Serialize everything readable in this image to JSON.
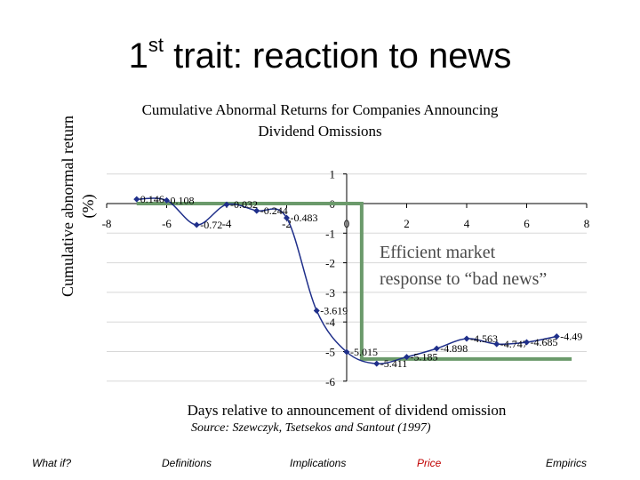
{
  "slide": {
    "title_main": "1",
    "title_sup": "st",
    "title_rest": " trait: reaction to news",
    "source": "Source: Szewczyk, Tsetsekos and Santout (1997)"
  },
  "nav": {
    "what_if": "What if?",
    "definitions": "Definitions",
    "implications": "Implications",
    "price": "Price",
    "empirics": "Empirics"
  },
  "colors": {
    "series": "#1f2f8a",
    "overlay": "#6b9a6b",
    "price_nav": "#c00000"
  },
  "chart_data": {
    "type": "line",
    "title_line1": "Cumulative Abnormal Returns for Companies Announcing",
    "title_line2": "Dividend Omissions",
    "xlabel": "Days relative to announcement of dividend omission",
    "ylabel_line1": "Cumulative abnormal return",
    "ylabel_line2": "(%)",
    "xlim": [
      -8,
      8
    ],
    "ylim": [
      -6,
      1
    ],
    "x_ticks": [
      "-8",
      "-6",
      "-4",
      "-2",
      "0",
      "2",
      "4",
      "6",
      "8"
    ],
    "y_ticks": [
      "1",
      "0",
      "-1",
      "-2",
      "-3",
      "-4",
      "-5",
      "-6"
    ],
    "x": [
      -7,
      -6,
      -5,
      -4,
      -3,
      -2,
      -1,
      0,
      1,
      2,
      3,
      4,
      5,
      6,
      7
    ],
    "y": [
      0.146,
      0.108,
      -0.72,
      -0.032,
      -0.244,
      -0.483,
      -3.619,
      -5.015,
      -5.411,
      -5.185,
      -4.898,
      -4.563,
      -4.747,
      -4.685,
      -4.49
    ],
    "labels": [
      "0.146",
      "0.108",
      "-0.72",
      "-0.032",
      "-0.244",
      "-0.483",
      "-3.619",
      "-5.015",
      "-5.411",
      "-5.185",
      "-4.898",
      "-4.563",
      "-4.747",
      "-4.685",
      "-4.49"
    ],
    "annotation_line1": "Efficient market",
    "annotation_line2": "response to “bad news”",
    "overlay_path": [
      [
        -7,
        0
      ],
      [
        -2,
        0
      ],
      [
        0.5,
        0
      ],
      [
        0.5,
        -5.25
      ],
      [
        7.5,
        -5.25
      ]
    ]
  }
}
